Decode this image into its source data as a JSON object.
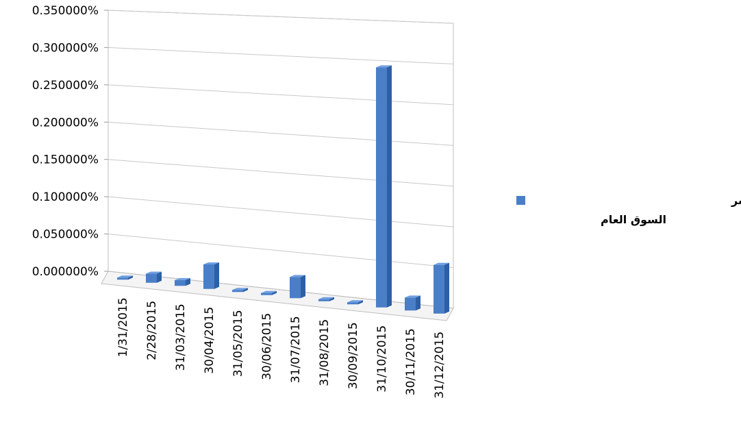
{
  "chart_data": {
    "type": "bar",
    "style": "3d-column",
    "title": "",
    "xlabel": "",
    "ylabel": "",
    "categories": [
      "1/31/2015",
      "2/28/2015",
      "31/03/2015",
      "30/04/2015",
      "31/05/2015",
      "30/06/2015",
      "31/07/2015",
      "31/08/2015",
      "30/09/2015",
      "31/10/2015",
      "30/11/2015",
      "31/12/2015"
    ],
    "series": [
      {
        "name": "مقارنة تداول سهم الخزنة / مؤشر السوق العام",
        "color": "#4a7fc8",
        "values": [
          0.0003,
          0.012,
          0.0075,
          0.032,
          0.001,
          0.001,
          0.027,
          0.0005,
          0.0005,
          0.3,
          0.016,
          0.06
        ]
      }
    ],
    "ylim": [
      0,
      0.35
    ],
    "yticks": [
      "0.000000%",
      "0.050000%",
      "0.100000%",
      "0.150000%",
      "0.200000%",
      "0.250000%",
      "0.300000%",
      "0.350000%"
    ],
    "grid": true,
    "legend": {
      "position": "right",
      "line1": "مقارنة تداول سهم الخزنة / مؤشر",
      "line2": "السوق العام"
    }
  }
}
